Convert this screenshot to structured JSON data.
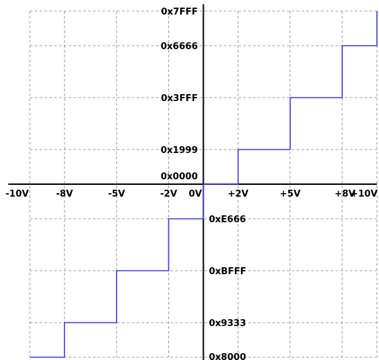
{
  "chart_data": {
    "type": "line",
    "title": "",
    "xlabel": "",
    "ylabel": "",
    "xlim": [
      -10,
      10
    ],
    "ylim": [
      -10,
      10
    ],
    "grid": true,
    "colors": {
      "series": "#3b3bdc",
      "axis": "#000000",
      "grid": "#808080"
    },
    "x_ticks": [
      {
        "value": -10,
        "label": "-10V"
      },
      {
        "value": -8,
        "label": "-8V"
      },
      {
        "value": -5,
        "label": "-5V"
      },
      {
        "value": -2,
        "label": "-2V"
      },
      {
        "value": 0,
        "label": "0V"
      },
      {
        "value": 2,
        "label": "+2V"
      },
      {
        "value": 5,
        "label": "+5V"
      },
      {
        "value": 8,
        "label": "+8V"
      },
      {
        "value": 10,
        "label": "+10V"
      }
    ],
    "y_ticks": [
      {
        "value": 10,
        "label": "0x7FFF"
      },
      {
        "value": 8,
        "label": "0x6666"
      },
      {
        "value": 5,
        "label": "0x3FFF"
      },
      {
        "value": 2,
        "label": "0x1999"
      },
      {
        "value": 0,
        "label": "0x0000"
      },
      {
        "value": -2,
        "label": "0xE666"
      },
      {
        "value": -5,
        "label": "0xBFFF"
      },
      {
        "value": -8,
        "label": "0x9333"
      },
      {
        "value": -10,
        "label": "0x8000"
      }
    ],
    "series": [
      {
        "x": [
          -10,
          -8,
          -8,
          -5,
          -5,
          -2,
          -2,
          0,
          0,
          2,
          2,
          5,
          5,
          8,
          8,
          10,
          10
        ],
        "y": [
          -10,
          -10,
          -8,
          -8,
          -5,
          -5,
          -2,
          -2,
          0,
          0,
          2,
          2,
          5,
          5,
          8,
          8,
          10
        ]
      }
    ]
  }
}
